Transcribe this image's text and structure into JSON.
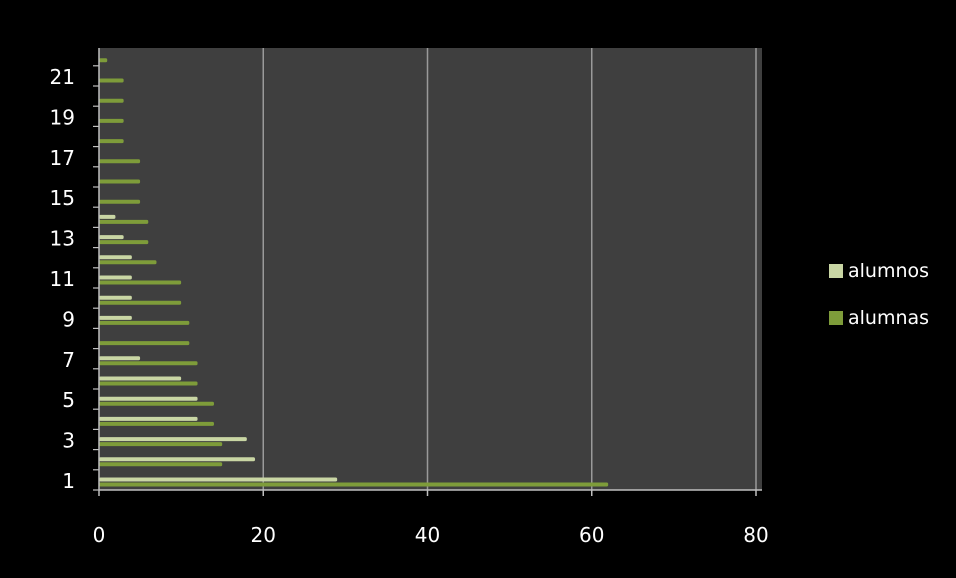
{
  "colors": {
    "background": "#000000",
    "plot_area": "#3f3f3f",
    "gridline": "#9a9a9a",
    "alumnos": "#c9d6a4",
    "alumnas": "#7e9c3a"
  },
  "chart_data": {
    "type": "bar",
    "orientation": "horizontal",
    "categories": [
      1,
      2,
      3,
      4,
      5,
      6,
      7,
      8,
      9,
      10,
      11,
      12,
      13,
      14,
      15,
      16,
      17,
      18,
      19,
      20,
      21,
      22
    ],
    "y_tick_labels": [
      "1",
      "3",
      "5",
      "7",
      "9",
      "11",
      "13",
      "15",
      "17",
      "19",
      "21"
    ],
    "x_tick_labels": [
      "0",
      "20",
      "40",
      "60",
      "80"
    ],
    "xlim": [
      0,
      80
    ],
    "grid": true,
    "legend_position": "right",
    "series": [
      {
        "name": "alumnos",
        "values": [
          29,
          19,
          18,
          12,
          12,
          10,
          5,
          0,
          4,
          4,
          4,
          4,
          3,
          2,
          0,
          0,
          0,
          0,
          0,
          0,
          0,
          0
        ]
      },
      {
        "name": "alumnas",
        "values": [
          62,
          15,
          15,
          14,
          14,
          12,
          12,
          11,
          11,
          10,
          10,
          7,
          6,
          6,
          5,
          5,
          5,
          3,
          3,
          3,
          3,
          1
        ]
      }
    ]
  }
}
